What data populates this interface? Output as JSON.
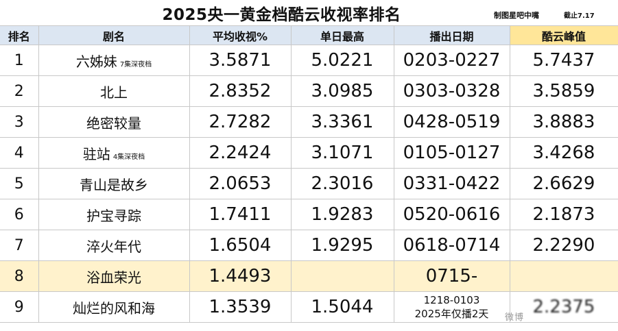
{
  "title": "2025央一黄金档酷云收视率排名",
  "credit": "制图星吧中嘴",
  "until": "截止7.17",
  "columns": [
    "排名",
    "剧名",
    "平均收视%",
    "单日最高",
    "播出日期",
    "酷云峰值"
  ],
  "rows": [
    {
      "rank": "1",
      "name": "六姊妹",
      "note": "7集深夜档",
      "avg": "3.5871",
      "high": "5.0221",
      "dates": "0203-0227",
      "peak": "5.7437"
    },
    {
      "rank": "2",
      "name": "北上",
      "note": "",
      "avg": "2.8352",
      "high": "3.0985",
      "dates": "0303-0328",
      "peak": "3.5859"
    },
    {
      "rank": "3",
      "name": "绝密较量",
      "note": "",
      "avg": "2.7282",
      "high": "3.3361",
      "dates": "0428-0519",
      "peak": "3.8883"
    },
    {
      "rank": "4",
      "name": "驻站",
      "note": "4集深夜档",
      "avg": "2.2424",
      "high": "3.1071",
      "dates": "0105-0127",
      "peak": "3.4268"
    },
    {
      "rank": "5",
      "name": "青山是故乡",
      "note": "",
      "avg": "2.0653",
      "high": "2.3016",
      "dates": "0331-0422",
      "peak": "2.6629"
    },
    {
      "rank": "6",
      "name": "护宝寻踪",
      "note": "",
      "avg": "1.7411",
      "high": "1.9283",
      "dates": "0520-0616",
      "peak": "2.1873"
    },
    {
      "rank": "7",
      "name": "淬火年代",
      "note": "",
      "avg": "1.6504",
      "high": "1.9295",
      "dates": "0618-0714",
      "peak": "2.2290"
    }
  ],
  "row8": {
    "rank": "8",
    "name": "浴血荣光",
    "avg": "1.4493",
    "dates": "0715-"
  },
  "row9": {
    "rank": "9",
    "name": "灿烂的风和海",
    "avg": "1.3539",
    "high": "1.5044",
    "dates_line1": "1218-0103",
    "dates_line2": "2025年仅播2天",
    "peak": "2.2375"
  },
  "watermark": "微博"
}
